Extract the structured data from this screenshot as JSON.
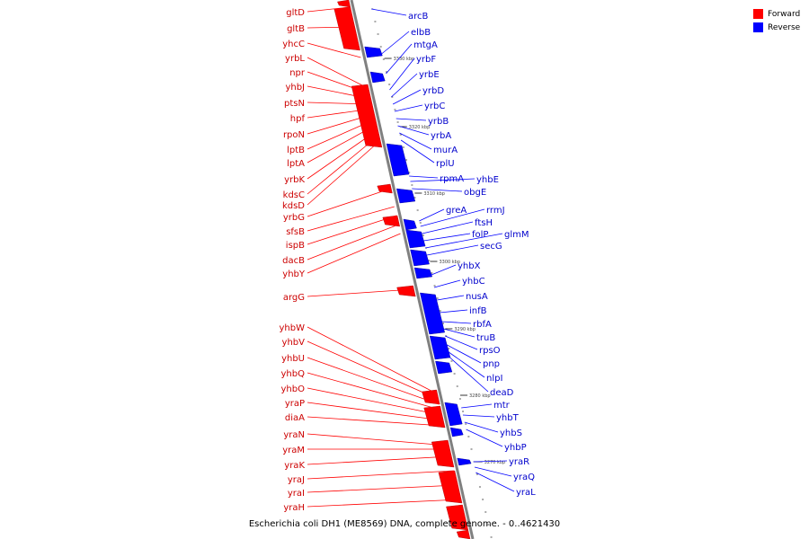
{
  "caption": "Escherichia coli DH1 (ME8569) DNA, complete genome. - 0..4621430",
  "legend": [
    {
      "label": "Forward",
      "color": "#ff0000"
    },
    {
      "label": "Reverse",
      "color": "#0000ff"
    }
  ],
  "colors": {
    "forward": "#ff0000",
    "forward_label": "#cc0000",
    "reverse": "#0000ff",
    "reverse_label": "#0000cc",
    "axis": "#808080"
  },
  "ticks": [
    "3330 kbp",
    "3320 kbp",
    "3310 kbp",
    "3300 kbp",
    "3290 kbp",
    "3280 kbp",
    "3270 kbp"
  ],
  "forward_genes": [
    "gltD",
    "gltB",
    "yhcC",
    "yrbL",
    "npr",
    "yhbJ",
    "ptsN",
    "hpf",
    "rpoN",
    "lptB",
    "lptA",
    "yrbK",
    "kdsC",
    "kdsD",
    "yrbG",
    "sfsB",
    "ispB",
    "dacB",
    "yhbY",
    "argG",
    "yhbW",
    "yhbV",
    "yhbU",
    "yhbQ",
    "yhbO",
    "yraP",
    "diaA",
    "yraN",
    "yraM",
    "yraK",
    "yraJ",
    "yraI",
    "yraH"
  ],
  "reverse_genes": [
    "arcB",
    "elbB",
    "mtgA",
    "yrbF",
    "yrbE",
    "yrbD",
    "yrbC",
    "yrbB",
    "yrbA",
    "murA",
    "rplU",
    "rpmA",
    "yhbE",
    "obgE",
    "greA",
    "rrmJ",
    "ftsH",
    "folP",
    "glmM",
    "secG",
    "yhbX",
    "yhbC",
    "nusA",
    "infB",
    "rbfA",
    "truB",
    "rpsO",
    "pnp",
    "nlpI",
    "deaD",
    "mtr",
    "yhbT",
    "yhbS",
    "yhbP",
    "yraR",
    "yraQ",
    "yraL"
  ]
}
